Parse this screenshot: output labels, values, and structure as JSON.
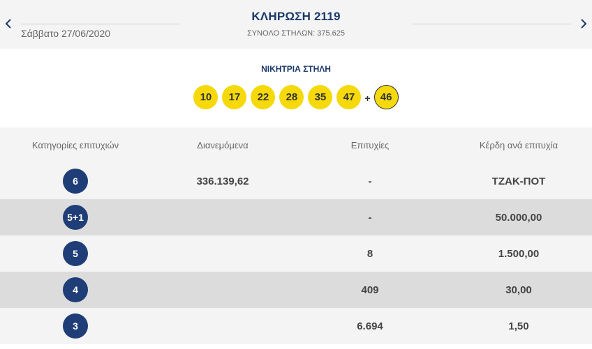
{
  "header": {
    "draw_title": "ΚΛΗΡΩΣΗ 2119",
    "draw_date": "Σάββατο 27/06/2020",
    "total_columns": "ΣΥΝΟΛΟ ΣΤΗΛΩΝ: 375.625",
    "prev_icon": "chevron-left-icon",
    "next_icon": "chevron-right-icon"
  },
  "winning": {
    "title": "ΝΙΚΗΤΡΙΑ ΣΤΗΛΗ",
    "numbers": [
      "10",
      "17",
      "22",
      "28",
      "35",
      "47"
    ],
    "plus": "+",
    "joker": "46",
    "ball_color": "#f5d90a"
  },
  "table": {
    "headers": [
      "Κατηγορίες επιτυχιών",
      "Διανεμόμενα",
      "Επιτυχίες",
      "Κέρδη ανά επιτυχία"
    ],
    "rows": [
      {
        "category": "6",
        "distributed": "336.139,62",
        "winners": "-",
        "prize": "ΤΖΑΚ-ΠΟΤ"
      },
      {
        "category": "5+1",
        "distributed": "",
        "winners": "-",
        "prize": "50.000,00"
      },
      {
        "category": "5",
        "distributed": "",
        "winners": "8",
        "prize": "1.500,00"
      },
      {
        "category": "4",
        "distributed": "",
        "winners": "409",
        "prize": "30,00"
      },
      {
        "category": "3",
        "distributed": "",
        "winners": "6.694",
        "prize": "1,50"
      }
    ],
    "category_color": "#1f3e78"
  }
}
